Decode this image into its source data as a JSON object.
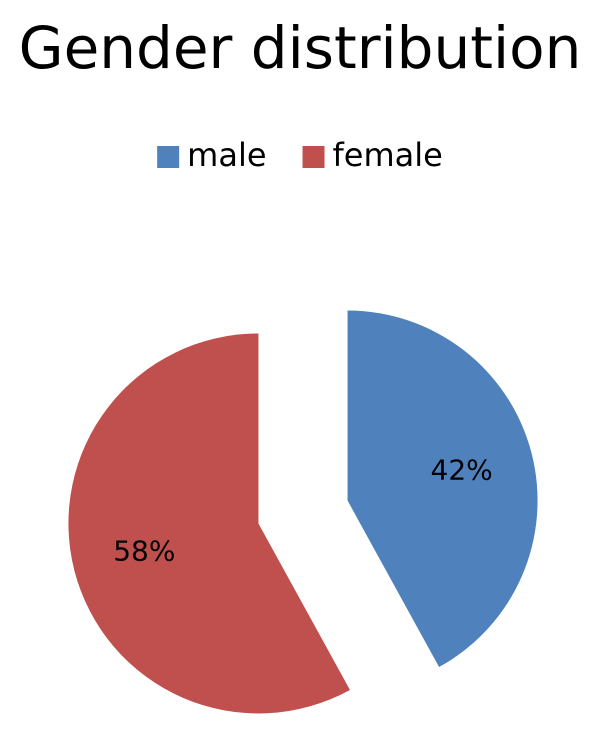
{
  "chart_data": {
    "type": "pie",
    "title": "Gender distribution",
    "categories": [
      "male",
      "female"
    ],
    "values": [
      42,
      58
    ],
    "value_labels": [
      "42%",
      "58%"
    ],
    "colors": [
      "#4f81bd",
      "#c0504d"
    ],
    "legend": "top"
  }
}
